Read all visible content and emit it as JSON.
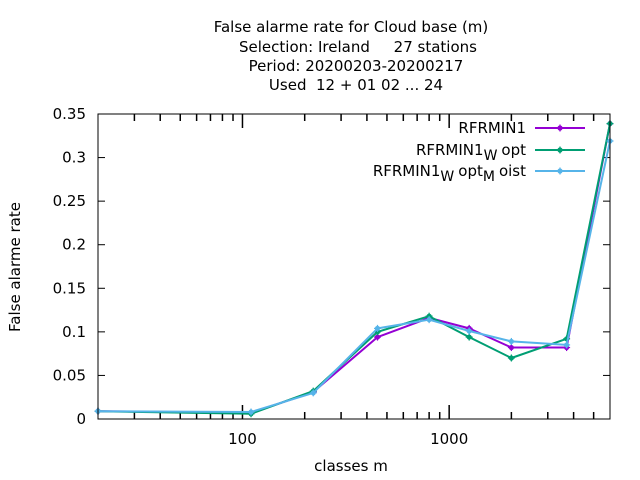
{
  "chart_data": {
    "type": "line",
    "title_lines": [
      "False alarme rate  for Cloud base (m)",
      "Selection: Ireland     27 stations",
      "Period: 20200203-20200217",
      "Used  12 + 01 02 ... 24"
    ],
    "xlabel": "classes m",
    "ylabel": "False alarme rate",
    "xscale": "log",
    "xlim": [
      20,
      6000
    ],
    "ylim": [
      0,
      0.35
    ],
    "yticks": [
      0,
      0.05,
      0.1,
      0.15,
      0.2,
      0.25,
      0.3,
      0.35
    ],
    "ytick_labels": [
      "0",
      "0.05",
      "0.1",
      "0.15",
      "0.2",
      "0.25",
      "0.3",
      "0.35"
    ],
    "xticks_major": [
      100,
      1000
    ],
    "xtick_labels": [
      "100",
      "1000"
    ],
    "xticks_minor": [
      30,
      40,
      50,
      60,
      70,
      80,
      90,
      200,
      300,
      400,
      500,
      600,
      700,
      800,
      900,
      2000,
      3000,
      4000,
      5000
    ],
    "legend_position": "top-right",
    "x": [
      20,
      110,
      220,
      450,
      800,
      1250,
      2000,
      3700,
      6000
    ],
    "series": [
      {
        "name_main": "RFRMIN1",
        "name_parts": [],
        "color": "#9400d3",
        "values": [
          0.009,
          0.007,
          0.031,
          0.094,
          0.116,
          0.104,
          0.082,
          0.082,
          0.339
        ]
      },
      {
        "name_main": "RFRMIN1",
        "name_parts": [
          [
            "W",
            "sub"
          ],
          [
            "opt",
            "base"
          ]
        ],
        "color": "#009e73",
        "values": [
          0.009,
          0.006,
          0.032,
          0.1,
          0.118,
          0.094,
          0.07,
          0.092,
          0.339
        ]
      },
      {
        "name_main": "RFRMIN1",
        "name_parts": [
          [
            "W",
            "sub"
          ],
          [
            "opt",
            "base"
          ],
          [
            "M",
            "sub"
          ],
          [
            "oist",
            "base"
          ]
        ],
        "color": "#56b4e9",
        "values": [
          0.009,
          0.008,
          0.03,
          0.104,
          0.114,
          0.101,
          0.089,
          0.085,
          0.319
        ]
      }
    ]
  }
}
